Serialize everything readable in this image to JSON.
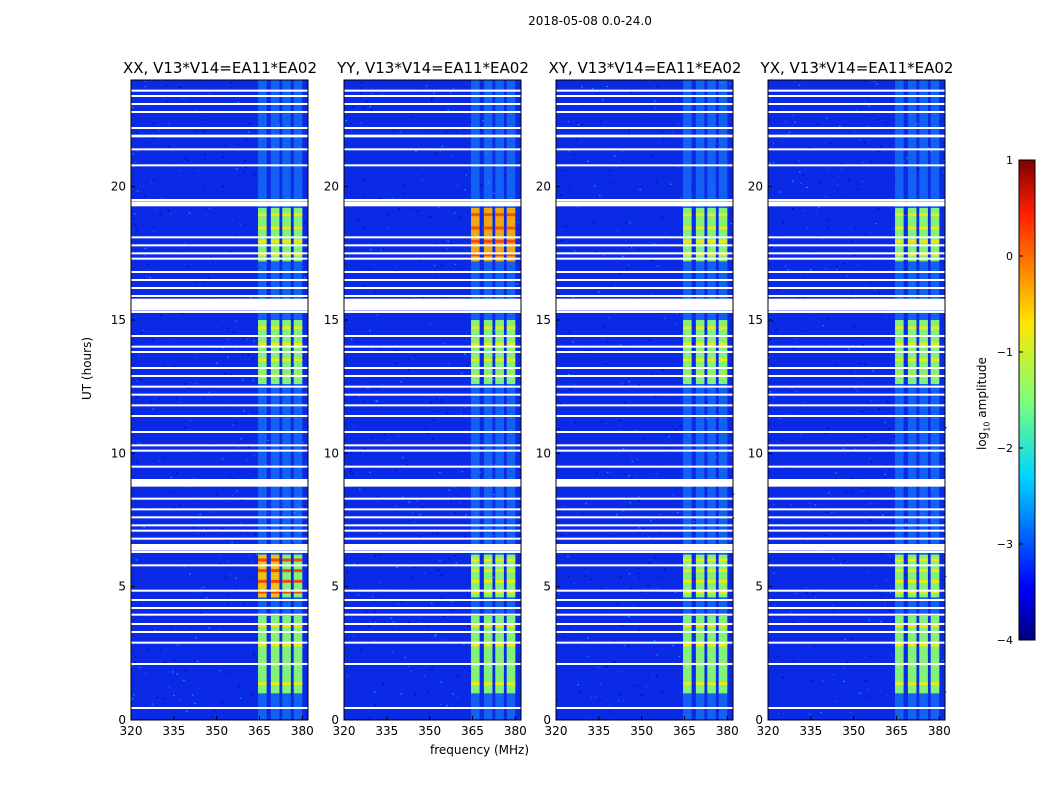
{
  "chart_data": {
    "type": "heatmap",
    "suptitle": "2018-05-08 0.0-24.0",
    "panels": [
      {
        "title": "XX, V13*V14=EA11*EA02"
      },
      {
        "title": "YY, V13*V14=EA11*EA02"
      },
      {
        "title": "XY, V13*V14=EA11*EA02"
      },
      {
        "title": "YX, V13*V14=EA11*EA02"
      }
    ],
    "xlabel": "frequency (MHz)",
    "ylabel": "UT (hours)",
    "xlim": [
      320,
      382
    ],
    "ylim": [
      0,
      24
    ],
    "xticks": [
      320,
      335,
      350,
      365,
      380
    ],
    "yticks": [
      0,
      5,
      10,
      15,
      20
    ],
    "colorbar": {
      "label": "log10 amplitude",
      "label_main": "log",
      "label_sub": "10",
      "label_rest": " amplitude",
      "range": [
        -4,
        1
      ],
      "ticks": [
        1,
        0,
        -1,
        -2,
        -3,
        -4
      ],
      "tick_labels": [
        "1",
        "0",
        "−1",
        "−2",
        "−3",
        "−4"
      ]
    },
    "flagged_hours": [
      0.45,
      2.1,
      2.9,
      3.3,
      3.6,
      3.95,
      4.2,
      4.5,
      4.85,
      5.8,
      6.3,
      6.5,
      6.8,
      7.1,
      7.3,
      7.6,
      7.9,
      8.3,
      8.8,
      9.0,
      9.5,
      10.1,
      10.3,
      10.8,
      11.4,
      11.8,
      12.2,
      12.5,
      12.9,
      13.2,
      13.8,
      14.0,
      14.4,
      15.3,
      15.5,
      15.7,
      15.9,
      16.2,
      16.5,
      16.8,
      17.3,
      17.5,
      17.8,
      18.1,
      19.3,
      19.5,
      20.8,
      21.4,
      21.9,
      22.2,
      22.8,
      23.1,
      23.4,
      23.6
    ]
  }
}
